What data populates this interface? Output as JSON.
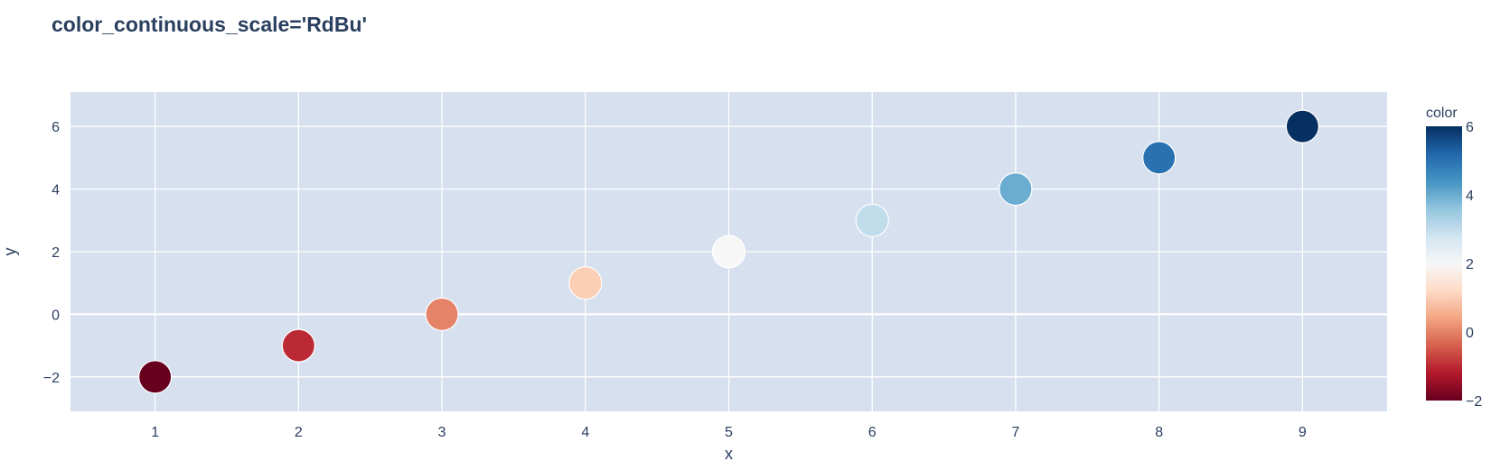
{
  "chart_data": {
    "type": "scatter",
    "title": "color_continuous_scale='RdBu'",
    "xlabel": "x",
    "ylabel": "y",
    "x": [
      1,
      2,
      3,
      4,
      5,
      6,
      7,
      8,
      9
    ],
    "y": [
      -2,
      -1,
      0,
      1,
      2,
      3,
      4,
      5,
      6
    ],
    "color": [
      -2,
      -1,
      0,
      1,
      2,
      3,
      4,
      5,
      6
    ],
    "xlim": [
      0.41,
      9.59
    ],
    "ylim": [
      -3.1,
      7.1
    ],
    "xticks": [
      1,
      2,
      3,
      4,
      5,
      6,
      7,
      8,
      9
    ],
    "yticks": [
      -2,
      0,
      2,
      4,
      6
    ],
    "grid": true,
    "colorbar": {
      "title": "color",
      "range": [
        -2,
        6
      ],
      "ticks": [
        -2,
        0,
        2,
        4,
        6
      ],
      "scale_name": "RdBu",
      "colors": [
        "#67001f",
        "#b2182b",
        "#d6604d",
        "#f4a582",
        "#fddbc7",
        "#f7f7f7",
        "#d1e5f0",
        "#92c5de",
        "#4393c3",
        "#2166ac",
        "#053061"
      ]
    }
  },
  "style": {
    "plot_bg": "#d6e0ee",
    "grid_color": "#ffffff",
    "text_color": "#2a3f5f",
    "marker_outline": "#ffffff"
  }
}
